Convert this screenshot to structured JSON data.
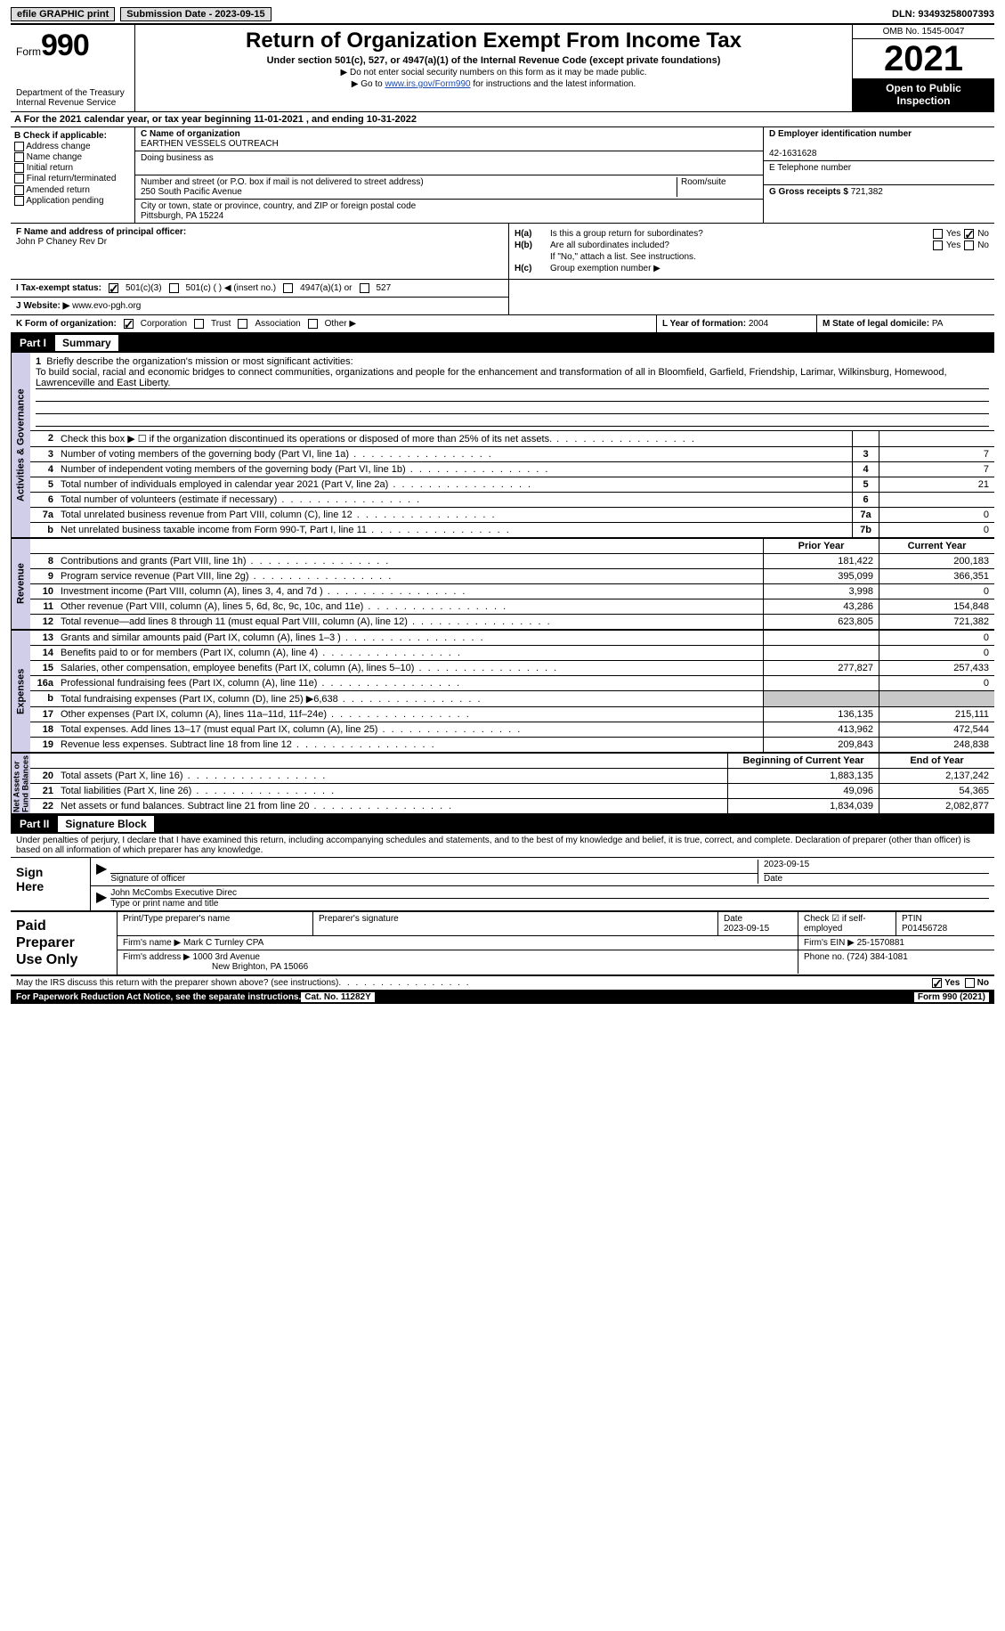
{
  "topbar": {
    "efile_label": "efile GRAPHIC print",
    "submission_label": "Submission Date - 2023-09-15",
    "dln_label": "DLN: 93493258007393"
  },
  "header": {
    "form_word": "Form",
    "form_num": "990",
    "dept": "Department of the Treasury\nInternal Revenue Service",
    "title": "Return of Organization Exempt From Income Tax",
    "subtitle": "Under section 501(c), 527, or 4947(a)(1) of the Internal Revenue Code (except private foundations)",
    "note1": "▶ Do not enter social security numbers on this form as it may be made public.",
    "note2_pre": "▶ Go to ",
    "note2_link": "www.irs.gov/Form990",
    "note2_post": " for instructions and the latest information.",
    "omb": "OMB No. 1545-0047",
    "year": "2021",
    "inspect": "Open to Public\nInspection"
  },
  "row_a": "A For the 2021 calendar year, or tax year beginning 11-01-2021    , and ending 10-31-2022",
  "col_b": {
    "hdr": "B Check if applicable:",
    "opts": [
      "Address change",
      "Name change",
      "Initial return",
      "Final return/terminated",
      "Amended return",
      "Application pending"
    ]
  },
  "col_c": {
    "name_lbl": "C Name of organization",
    "name": "EARTHEN VESSELS OUTREACH",
    "dba_lbl": "Doing business as",
    "dba": "",
    "street_lbl": "Number and street (or P.O. box if mail is not delivered to street address)",
    "room_lbl": "Room/suite",
    "street": "250 South Pacific Avenue",
    "city_lbl": "City or town, state or province, country, and ZIP or foreign postal code",
    "city": "Pittsburgh, PA   15224"
  },
  "col_de": {
    "d_lbl": "D Employer identification number",
    "d_val": "42-1631628",
    "e_lbl": "E Telephone number",
    "e_val": "",
    "g_lbl": "G Gross receipts $",
    "g_val": "721,382"
  },
  "row_f": {
    "lbl": "F Name and address of principal officer:",
    "val": "John P Chaney Rev Dr"
  },
  "row_h": {
    "ha_lbl": "H(a)",
    "ha_txt": "Is this a group return for subordinates?",
    "hb_lbl": "H(b)",
    "hb_txt": "Are all subordinates included?",
    "hb_note": "If \"No,\" attach a list. See instructions.",
    "hc_lbl": "H(c)",
    "hc_txt": "Group exemption number ▶",
    "yes": "Yes",
    "no": "No"
  },
  "row_i": {
    "lbl": "I   Tax-exempt status:",
    "o1": "501(c)(3)",
    "o2": "501(c) (   ) ◀ (insert no.)",
    "o3": "4947(a)(1) or",
    "o4": "527"
  },
  "row_j": {
    "lbl": "J   Website: ▶",
    "val": "www.evo-pgh.org"
  },
  "row_k": {
    "lbl": "K Form of organization:",
    "o1": "Corporation",
    "o2": "Trust",
    "o3": "Association",
    "o4": "Other ▶"
  },
  "row_l": {
    "lbl": "L Year of formation:",
    "val": "2004"
  },
  "row_m": {
    "lbl": "M State of legal domicile:",
    "val": "PA"
  },
  "part1": {
    "num": "Part I",
    "title": "Summary"
  },
  "mission": {
    "num": "1",
    "lbl": "Briefly describe the organization's mission or most significant activities:",
    "txt": "To build social, racial and economic bridges to connect communities, organizations and people for the enhancement and transformation of all in Bloomfield, Garfield, Friendship, Larimar, Wilkinsburg, Homewood, Lawrenceville and East Liberty."
  },
  "side_labels": {
    "gov": "Activities & Governance",
    "rev": "Revenue",
    "exp": "Expenses",
    "net": "Net Assets or\nFund Balances"
  },
  "gov_rows": [
    {
      "n": "2",
      "t": "Check this box ▶ ☐ if the organization discontinued its operations or disposed of more than 25% of its net assets.",
      "box": "",
      "v": ""
    },
    {
      "n": "3",
      "t": "Number of voting members of the governing body (Part VI, line 1a)",
      "box": "3",
      "v": "7"
    },
    {
      "n": "4",
      "t": "Number of independent voting members of the governing body (Part VI, line 1b)",
      "box": "4",
      "v": "7"
    },
    {
      "n": "5",
      "t": "Total number of individuals employed in calendar year 2021 (Part V, line 2a)",
      "box": "5",
      "v": "21"
    },
    {
      "n": "6",
      "t": "Total number of volunteers (estimate if necessary)",
      "box": "6",
      "v": ""
    },
    {
      "n": "7a",
      "t": "Total unrelated business revenue from Part VIII, column (C), line 12",
      "box": "7a",
      "v": "0"
    },
    {
      "n": "b",
      "t": "Net unrelated business taxable income from Form 990-T, Part I, line 11",
      "box": "7b",
      "v": "0"
    }
  ],
  "col_hdrs": {
    "prior": "Prior Year",
    "current": "Current Year",
    "begin": "Beginning of Current Year",
    "end": "End of Year"
  },
  "rev_rows": [
    {
      "n": "8",
      "t": "Contributions and grants (Part VIII, line 1h)",
      "p": "181,422",
      "c": "200,183"
    },
    {
      "n": "9",
      "t": "Program service revenue (Part VIII, line 2g)",
      "p": "395,099",
      "c": "366,351"
    },
    {
      "n": "10",
      "t": "Investment income (Part VIII, column (A), lines 3, 4, and 7d )",
      "p": "3,998",
      "c": "0"
    },
    {
      "n": "11",
      "t": "Other revenue (Part VIII, column (A), lines 5, 6d, 8c, 9c, 10c, and 11e)",
      "p": "43,286",
      "c": "154,848"
    },
    {
      "n": "12",
      "t": "Total revenue—add lines 8 through 11 (must equal Part VIII, column (A), line 12)",
      "p": "623,805",
      "c": "721,382"
    }
  ],
  "exp_rows": [
    {
      "n": "13",
      "t": "Grants and similar amounts paid (Part IX, column (A), lines 1–3 )",
      "p": "",
      "c": "0"
    },
    {
      "n": "14",
      "t": "Benefits paid to or for members (Part IX, column (A), line 4)",
      "p": "",
      "c": "0"
    },
    {
      "n": "15",
      "t": "Salaries, other compensation, employee benefits (Part IX, column (A), lines 5–10)",
      "p": "277,827",
      "c": "257,433"
    },
    {
      "n": "16a",
      "t": "Professional fundraising fees (Part IX, column (A), line 11e)",
      "p": "",
      "c": "0"
    },
    {
      "n": "b",
      "t": "Total fundraising expenses (Part IX, column (D), line 25) ▶6,638",
      "p": "SHADE",
      "c": "SHADE"
    },
    {
      "n": "17",
      "t": "Other expenses (Part IX, column (A), lines 11a–11d, 11f–24e)",
      "p": "136,135",
      "c": "215,111"
    },
    {
      "n": "18",
      "t": "Total expenses. Add lines 13–17 (must equal Part IX, column (A), line 25)",
      "p": "413,962",
      "c": "472,544"
    },
    {
      "n": "19",
      "t": "Revenue less expenses. Subtract line 18 from line 12",
      "p": "209,843",
      "c": "248,838"
    }
  ],
  "net_rows": [
    {
      "n": "20",
      "t": "Total assets (Part X, line 16)",
      "p": "1,883,135",
      "c": "2,137,242"
    },
    {
      "n": "21",
      "t": "Total liabilities (Part X, line 26)",
      "p": "49,096",
      "c": "54,365"
    },
    {
      "n": "22",
      "t": "Net assets or fund balances. Subtract line 21 from line 20",
      "p": "1,834,039",
      "c": "2,082,877"
    }
  ],
  "part2": {
    "num": "Part II",
    "title": "Signature Block"
  },
  "sig": {
    "decl": "Under penalties of perjury, I declare that I have examined this return, including accompanying schedules and statements, and to the best of my knowledge and belief, it is true, correct, and complete. Declaration of preparer (other than officer) is based on all information of which preparer has any knowledge.",
    "sign_here": "Sign\nHere",
    "sig_officer_lbl": "Signature of officer",
    "date_lbl": "Date",
    "date_val": "2023-09-15",
    "name_val": "John McCombs  Executive Direc",
    "name_lbl": "Type or print name and title"
  },
  "prep": {
    "label": "Paid\nPreparer\nUse Only",
    "r1": {
      "c1": "Print/Type preparer's name",
      "c2": "Preparer's signature",
      "c3_lbl": "Date",
      "c3_val": "2023-09-15",
      "c4_lbl": "Check ☑ if self-employed",
      "c5_lbl": "PTIN",
      "c5_val": "P01456728"
    },
    "r2": {
      "lbl": "Firm's name      ▶",
      "val": "Mark C Turnley CPA",
      "ein_lbl": "Firm's EIN ▶",
      "ein_val": "25-1570881"
    },
    "r3": {
      "lbl": "Firm's address ▶",
      "val1": "1000 3rd Avenue",
      "val2": "New Brighton, PA  15066",
      "ph_lbl": "Phone no.",
      "ph_val": "(724) 384-1081"
    }
  },
  "footer": {
    "discuss": "May the IRS discuss this return with the preparer shown above? (see instructions)",
    "yes": "Yes",
    "no": "No",
    "paperwork": "For Paperwork Reduction Act Notice, see the separate instructions.",
    "cat": "Cat. No. 11282Y",
    "form": "Form 990 (2021)"
  }
}
